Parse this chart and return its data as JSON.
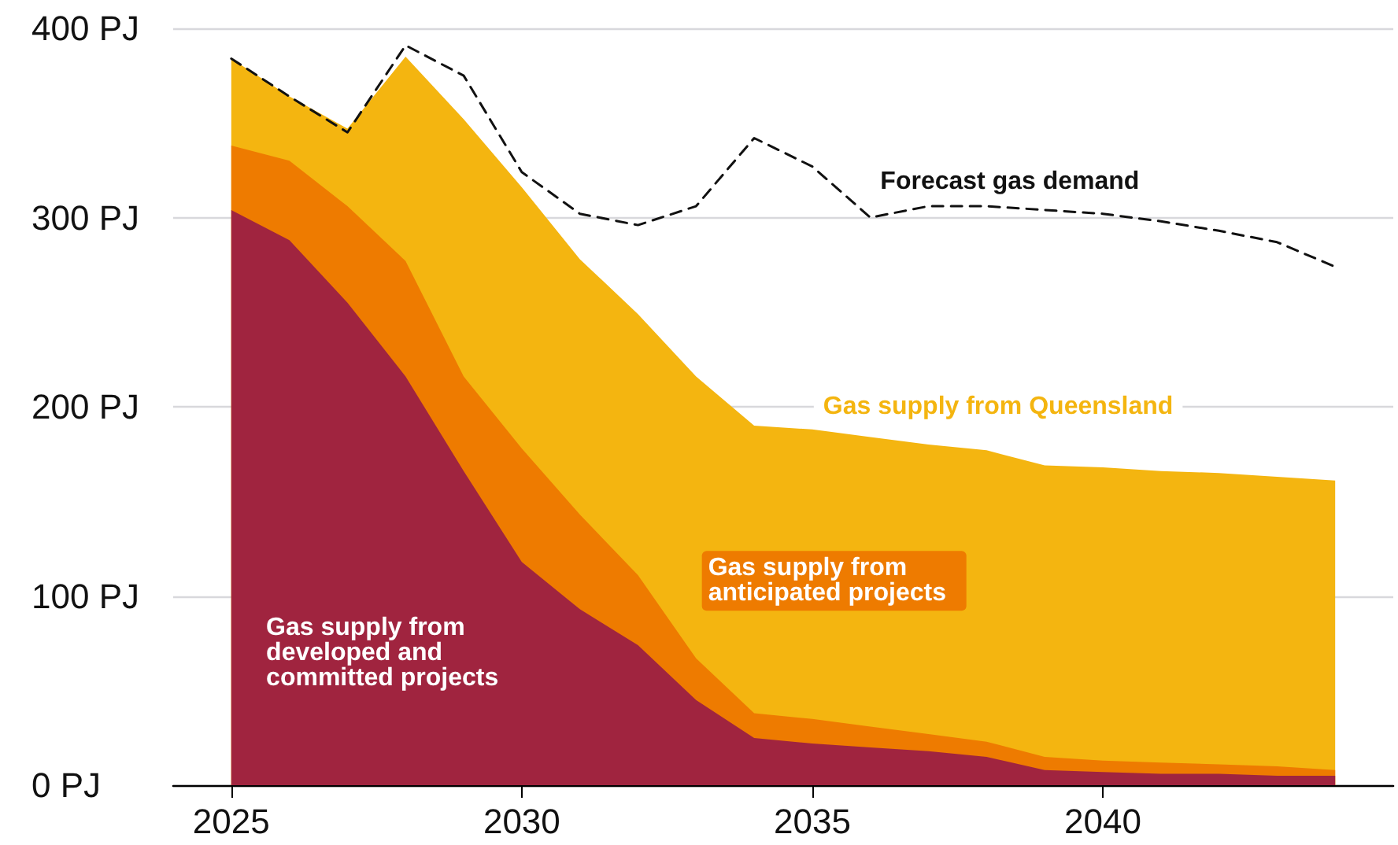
{
  "chart_data": {
    "type": "area",
    "stacked": true,
    "legend": false,
    "grid": "y",
    "marker": "none",
    "x": [
      2025,
      2026,
      2027,
      2028,
      2029,
      2030,
      2031,
      2032,
      2033,
      2034,
      2035,
      2036,
      2037,
      2038,
      2039,
      2040,
      2041,
      2042,
      2043,
      2044
    ],
    "xlim": [
      2024,
      2045
    ],
    "xticks": [
      2025,
      2030,
      2035,
      2040
    ],
    "ylim": [
      0,
      400
    ],
    "yticks": [
      {
        "value": 0,
        "label": "0 PJ"
      },
      {
        "value": 100,
        "label": "100 PJ"
      },
      {
        "value": 200,
        "label": "200 PJ"
      },
      {
        "value": 300,
        "label": "300 PJ"
      },
      {
        "value": 400,
        "label": "400 PJ"
      }
    ],
    "series": [
      {
        "name": "Gas supply from developed and committed projects",
        "color": "#a0243f",
        "values": [
          304,
          288,
          255,
          216,
          166,
          118,
          93,
          74,
          45,
          25,
          22,
          20,
          18,
          15,
          8,
          7,
          6,
          6,
          5,
          5
        ]
      },
      {
        "name": "Gas supply from anticipated projects",
        "color": "#ee7b00",
        "values": [
          34,
          42,
          51,
          61,
          50,
          60,
          50,
          37,
          22,
          13,
          13,
          11,
          9,
          8,
          7,
          6,
          6,
          5,
          5,
          3
        ]
      },
      {
        "name": "Gas supply from Queensland",
        "color": "#f4b510",
        "values": [
          46,
          34,
          41,
          108,
          136,
          138,
          135,
          138,
          149,
          152,
          153,
          153,
          153,
          154,
          154,
          155,
          154,
          154,
          153,
          153
        ]
      },
      {
        "name": "Forecast gas demand",
        "type": "line",
        "line_style": "dashed",
        "color": "#111111",
        "values": [
          384,
          364,
          345,
          391,
          375,
          324,
          302,
          296,
          306,
          342,
          327,
          300,
          306,
          306,
          304,
          302,
          298,
          293,
          287,
          274
        ]
      }
    ]
  }
}
